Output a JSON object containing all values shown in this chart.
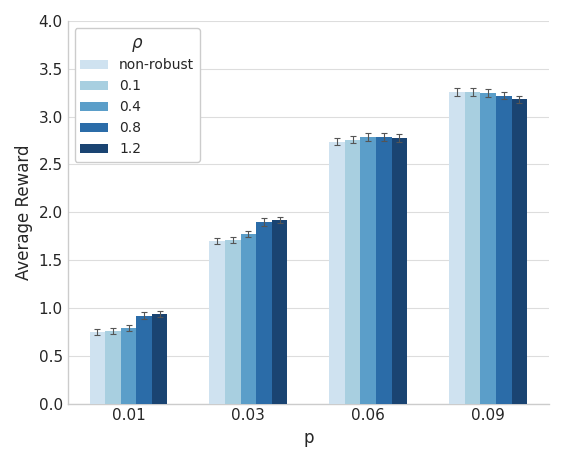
{
  "categories": [
    "0.01",
    "0.03",
    "0.06",
    "0.09"
  ],
  "series_labels": [
    "non-robust",
    "0.1",
    "0.4",
    "0.8",
    "1.2"
  ],
  "colors": [
    "#cfe2f0",
    "#a8cfe0",
    "#5b9ec9",
    "#2b6ca8",
    "#1a4472"
  ],
  "values": [
    [
      0.75,
      0.76,
      0.79,
      0.92,
      0.94
    ],
    [
      1.7,
      1.71,
      1.77,
      1.9,
      1.92
    ],
    [
      2.74,
      2.76,
      2.79,
      2.79,
      2.78
    ],
    [
      3.26,
      3.26,
      3.25,
      3.22,
      3.18
    ]
  ],
  "errors": [
    [
      0.03,
      0.03,
      0.03,
      0.04,
      0.03
    ],
    [
      0.03,
      0.03,
      0.03,
      0.04,
      0.03
    ],
    [
      0.04,
      0.04,
      0.04,
      0.04,
      0.04
    ],
    [
      0.04,
      0.04,
      0.04,
      0.04,
      0.04
    ]
  ],
  "xlabel": "p",
  "ylabel": "Average Reward",
  "ylim": [
    0,
    4.0
  ],
  "yticks": [
    0.0,
    0.5,
    1.0,
    1.5,
    2.0,
    2.5,
    3.0,
    3.5,
    4.0
  ],
  "legend_title": "ρ",
  "bar_width": 0.13,
  "group_positions": [
    0,
    1,
    2,
    3
  ]
}
